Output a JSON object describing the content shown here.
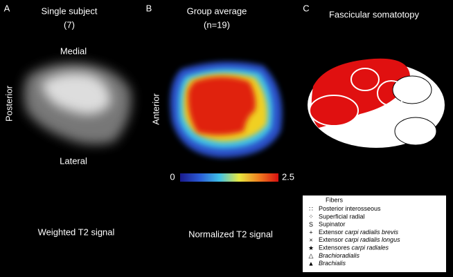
{
  "panels": [
    {
      "letter": "A",
      "title": "Single subject",
      "subtitle": "(7)",
      "top_label": "Medial",
      "side_label": "Posterior",
      "bottom_label": "Lateral",
      "caption": "Weighted T2 signal"
    },
    {
      "letter": "B",
      "title": "Group average",
      "subtitle": "(n=19)",
      "side_label": "Anterior",
      "caption": "Normalized T2 signal",
      "colorbar": {
        "min": 0,
        "max": 2.5
      }
    },
    {
      "letter": "C",
      "title": "Fascicular somatotopy"
    }
  ],
  "legend": {
    "title": "Fibers",
    "items": [
      {
        "symbol": "∷",
        "segments": [
          {
            "text": "Posterior interosseous"
          }
        ]
      },
      {
        "symbol": "⁘",
        "segments": [
          {
            "text": "Superficial radial"
          }
        ]
      },
      {
        "symbol": "S",
        "segments": [
          {
            "text": "Supinator"
          }
        ]
      },
      {
        "symbol": "+",
        "segments": [
          {
            "text": "Extensor "
          },
          {
            "text": "carpi radialis brevis",
            "italic": true
          }
        ]
      },
      {
        "symbol": "×",
        "segments": [
          {
            "text": "Extensor "
          },
          {
            "text": "carpi radialis longus",
            "italic": true
          }
        ]
      },
      {
        "symbol": "★",
        "segments": [
          {
            "text": "Extensores "
          },
          {
            "text": "carpi radiales",
            "italic": true
          }
        ]
      },
      {
        "symbol": "△",
        "segments": [
          {
            "text": "Brachioradialis",
            "italic": true
          }
        ]
      },
      {
        "symbol": "▲",
        "segments": [
          {
            "text": "Brachialis",
            "italic": true
          }
        ]
      }
    ]
  }
}
